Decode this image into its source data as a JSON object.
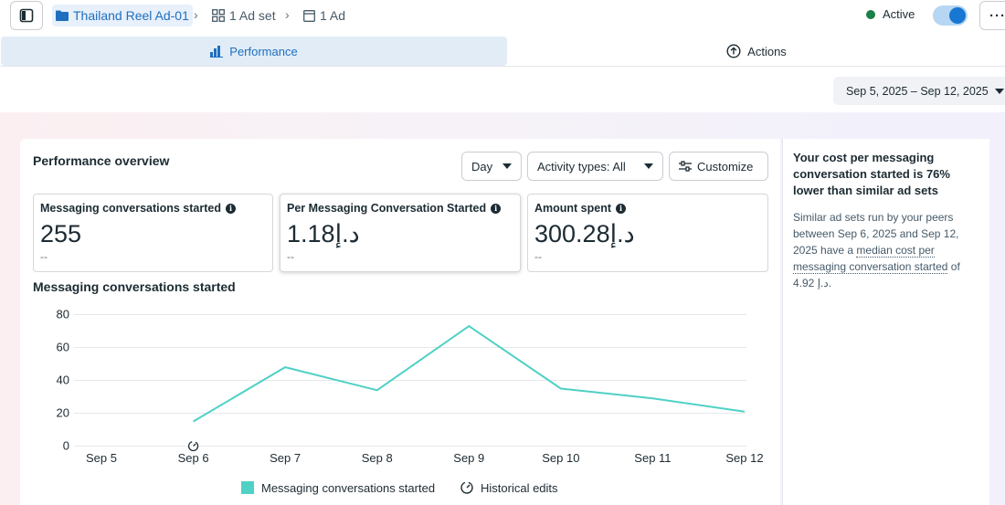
{
  "breadcrumb": {
    "campaign": "Thailand Reel Ad-01",
    "ad_set": "1 Ad set",
    "ad": "1 Ad"
  },
  "status": {
    "label": "Active",
    "toggle_on": true
  },
  "tabs": {
    "performance": "Performance",
    "actions": "Actions"
  },
  "date_range": "Sep 5, 2025 – Sep 12, 2025",
  "overview": {
    "title": "Performance overview",
    "day_label": "Day",
    "activity_label": "Activity types: All",
    "customize_label": "Customize"
  },
  "metrics": [
    {
      "label": "Messaging conversations started",
      "value": "255",
      "sub": "--"
    },
    {
      "label": "Per Messaging Conversation Started",
      "value": "1.18د.إ",
      "sub": "--"
    },
    {
      "label": "Amount spent",
      "value": "300.28د.إ",
      "sub": "--"
    }
  ],
  "chart_title": "Messaging conversations started",
  "chart_data": {
    "type": "line",
    "x": [
      "Sep 5",
      "Sep 6",
      "Sep 7",
      "Sep 8",
      "Sep 9",
      "Sep 10",
      "Sep 11",
      "Sep 12"
    ],
    "series": [
      {
        "name": "Messaging conversations started",
        "values": [
          null,
          15,
          48,
          34,
          73,
          35,
          29,
          21
        ]
      }
    ],
    "yticks": [
      0,
      20,
      40,
      60,
      80
    ],
    "ylim": [
      0,
      80
    ],
    "legend": [
      "Messaging conversations started",
      "Historical edits"
    ],
    "historical_edit_at": "Sep 6",
    "color": "#4fd1c5"
  },
  "insight": {
    "title": "Your cost per messaging conversation started is 76% lower than similar ad sets",
    "body_1": "Similar ad sets run by your peers between Sep 6, 2025 and Sep 12, 2025 have a ",
    "body_link": "median cost per messaging conversation started",
    "body_2": " of 4.92 د.إ."
  }
}
